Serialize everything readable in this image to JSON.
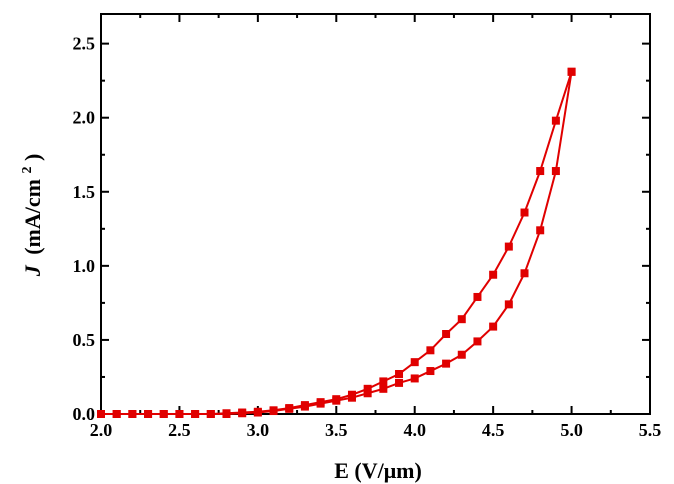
{
  "chart_data": {
    "type": "line",
    "xlabel": "E (V/μm)",
    "ylabel": "J (mA/cm²)",
    "ylabel_parts": {
      "symbol": "J",
      "unit": "(mA/cm",
      "exponent": "2",
      "close": ")"
    },
    "xlim": [
      2.0,
      5.5
    ],
    "ylim": [
      0.0,
      2.7
    ],
    "x_ticks": [
      "2.0",
      "2.5",
      "3.0",
      "3.5",
      "4.0",
      "4.5",
      "5.0",
      "5.5"
    ],
    "y_ticks": [
      "0.0",
      "0.5",
      "1.0",
      "1.5",
      "2.0",
      "2.5"
    ],
    "x_tick_values": [
      2.0,
      2.5,
      3.0,
      3.5,
      4.0,
      4.5,
      5.0,
      5.5
    ],
    "y_tick_values": [
      0.0,
      0.5,
      1.0,
      1.5,
      2.0,
      2.5
    ],
    "grid": false,
    "legend": false,
    "marker": "square",
    "color": "#e00000",
    "series": [
      {
        "x": [
          2.0,
          2.1,
          2.2,
          2.3,
          2.4,
          2.5,
          2.6,
          2.7,
          2.8,
          2.9,
          3.0,
          3.1,
          3.2,
          3.3,
          3.4,
          3.5,
          3.6,
          3.7,
          3.8,
          3.9,
          4.0,
          4.1,
          4.2,
          4.3,
          4.4,
          4.5,
          4.6,
          4.7,
          4.8,
          4.9,
          5.0
        ],
        "y": [
          0.0,
          0.0,
          0.0,
          0.0,
          0.0,
          0.0,
          0.0,
          0.0,
          0.005,
          0.01,
          0.015,
          0.025,
          0.04,
          0.06,
          0.08,
          0.1,
          0.13,
          0.17,
          0.22,
          0.27,
          0.35,
          0.43,
          0.54,
          0.64,
          0.79,
          0.94,
          1.13,
          1.36,
          1.64,
          1.98,
          2.31
        ]
      },
      {
        "x": [
          5.0,
          4.9,
          4.8,
          4.7,
          4.6,
          4.5,
          4.4,
          4.3,
          4.2,
          4.1,
          4.0,
          3.9,
          3.8,
          3.7,
          3.6,
          3.5,
          3.4,
          3.3,
          3.2,
          3.1,
          3.0,
          2.9,
          2.8,
          2.7,
          2.6,
          2.5,
          2.4,
          2.3,
          2.2,
          2.1,
          2.0
        ],
        "y": [
          2.31,
          1.64,
          1.24,
          0.95,
          0.74,
          0.59,
          0.49,
          0.4,
          0.34,
          0.29,
          0.24,
          0.21,
          0.17,
          0.14,
          0.11,
          0.09,
          0.07,
          0.05,
          0.035,
          0.02,
          0.01,
          0.005,
          0.0,
          0.0,
          0.0,
          0.0,
          0.0,
          0.0,
          0.0,
          0.0,
          0.0
        ]
      }
    ]
  }
}
